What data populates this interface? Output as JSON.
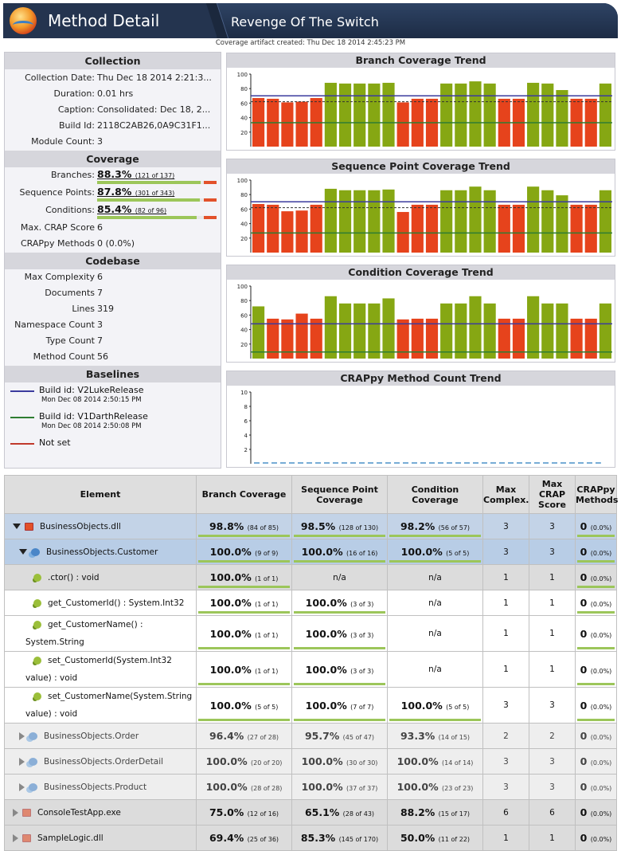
{
  "header": {
    "app_title": "Method Detail",
    "project_title": "Revenge Of The Switch",
    "artifact": "Coverage artifact created: Thu Dec 18 2014 2:45:23 PM"
  },
  "collection": {
    "title": "Collection",
    "rows": [
      {
        "k": "Collection Date:",
        "v": "Thu Dec 18 2014 2:21:3..."
      },
      {
        "k": "Duration:",
        "v": "0.01 hrs"
      },
      {
        "k": "Caption:",
        "v": "Consolidated: Dec 18, 2..."
      },
      {
        "k": "Build Id:",
        "v": "2118C2AB26,0A9C31F1..."
      },
      {
        "k": "Module Count:",
        "v": "3"
      }
    ]
  },
  "coverage": {
    "title": "Coverage",
    "rows": [
      {
        "k": "Branches:",
        "pct": "88.3%",
        "ct": "(121 of 137)",
        "frac": 0.883
      },
      {
        "k": "Sequence Points:",
        "pct": "87.8%",
        "ct": "(301 of 343)",
        "frac": 0.878
      },
      {
        "k": "Conditions:",
        "pct": "85.4%",
        "ct": "(82 of 96)",
        "frac": 0.854
      }
    ],
    "extra": [
      {
        "k": "Max. CRAP Score",
        "v": "6"
      },
      {
        "k": "CRAPpy Methods",
        "v": "0 (0.0%)"
      }
    ]
  },
  "codebase": {
    "title": "Codebase",
    "rows": [
      {
        "k": "Max Complexity",
        "v": "6"
      },
      {
        "k": "Documents",
        "v": "7"
      },
      {
        "k": "Lines",
        "v": "319"
      },
      {
        "k": "Namespace Count",
        "v": "3"
      },
      {
        "k": "Type Count",
        "v": "7"
      },
      {
        "k": "Method Count",
        "v": "56"
      }
    ]
  },
  "baselines": {
    "title": "Baselines",
    "items": [
      {
        "name": "Build id: V2LukeRelease",
        "date": "Mon Dec 08 2014 2:50:15 PM",
        "color": "#3b3b9e"
      },
      {
        "name": "Build id: V1DarthRelease",
        "date": "Mon Dec 08 2014 2:50:08 PM",
        "color": "#2e7d32"
      },
      {
        "name": "Not set",
        "date": "",
        "color": "#c0392b"
      }
    ]
  },
  "chart_data": [
    {
      "type": "bar",
      "title": "Branch Coverage Trend",
      "ylim": [
        0,
        100
      ],
      "yticks": [
        20,
        40,
        60,
        80,
        100
      ],
      "lines": {
        "blue": 70,
        "green": 33,
        "dashed": 62
      },
      "values": [
        67,
        66,
        61,
        62,
        67,
        88,
        87,
        87,
        87,
        88,
        61,
        66,
        66,
        87,
        87,
        90,
        87,
        66,
        66,
        88,
        87,
        78,
        66,
        66,
        87
      ]
    },
    {
      "type": "bar",
      "title": "Sequence Point Coverage Trend",
      "ylim": [
        0,
        100
      ],
      "yticks": [
        20,
        40,
        60,
        80,
        100
      ],
      "lines": {
        "blue": 70,
        "green": 27,
        "dashed": 62
      },
      "values": [
        67,
        66,
        57,
        58,
        66,
        88,
        86,
        86,
        86,
        87,
        56,
        66,
        66,
        86,
        86,
        91,
        86,
        66,
        66,
        91,
        86,
        79,
        66,
        66,
        86
      ]
    },
    {
      "type": "bar",
      "title": "Condition Coverage Trend",
      "ylim": [
        0,
        100
      ],
      "yticks": [
        20,
        40,
        60,
        80,
        100
      ],
      "lines": {
        "blue": 48,
        "green": 9,
        "dashed": null
      },
      "values": [
        72,
        55,
        54,
        62,
        55,
        86,
        76,
        76,
        76,
        83,
        54,
        55,
        55,
        76,
        76,
        86,
        76,
        55,
        55,
        86,
        76,
        76,
        55,
        55,
        76
      ]
    },
    {
      "type": "line",
      "title": "CRAPpy Method Count Trend",
      "ylim": [
        0,
        10
      ],
      "yticks": [
        2,
        4,
        6,
        8,
        10
      ],
      "values": [
        0,
        0,
        0,
        0,
        0,
        0,
        0,
        0,
        0,
        0,
        0,
        0,
        0,
        0,
        0,
        0,
        0,
        0,
        0,
        0,
        0,
        0,
        0,
        0,
        0
      ]
    }
  ],
  "grid": {
    "headers": [
      "Element",
      "Branch Coverage",
      "Sequence Point Coverage",
      "Condition Coverage",
      "Max Complex.",
      "Max CRAP Score",
      "CRAPpy Methods"
    ],
    "rows": [
      {
        "cls": "lvl0",
        "indent": 0,
        "tri": "dn",
        "icon": "asm",
        "name": "BusinessObjects.dll",
        "b": [
          "98.8%",
          "(84 of 85)"
        ],
        "s": [
          "98.5%",
          "(128 of 130)"
        ],
        "c": [
          "98.2%",
          "(56 of 57)"
        ],
        "mc": "3",
        "crap": "3",
        "crappy": [
          "0",
          "(0.0%)"
        ]
      },
      {
        "cls": "lvl1",
        "indent": 1,
        "tri": "dn",
        "icon": "cls",
        "name": "BusinessObjects.Customer",
        "b": [
          "100.0%",
          "(9 of 9)"
        ],
        "s": [
          "100.0%",
          "(16 of 16)"
        ],
        "c": [
          "100.0%",
          "(5 of 5)"
        ],
        "mc": "3",
        "crap": "3",
        "crappy": [
          "0",
          "(0.0%)"
        ]
      },
      {
        "cls": "sel",
        "indent": 2,
        "icon": "mth",
        "name": ".ctor() : void",
        "b": [
          "100.0%",
          "(1 of 1)"
        ],
        "s": [
          "n/a",
          ""
        ],
        "c": [
          "n/a",
          ""
        ],
        "mc": "1",
        "crap": "1",
        "crappy": [
          "0",
          "(0.0%)"
        ]
      },
      {
        "cls": "",
        "indent": 2,
        "icon": "mth",
        "name": "get_CustomerId() : System.Int32",
        "b": [
          "100.0%",
          "(1 of 1)"
        ],
        "s": [
          "100.0%",
          "(3 of 3)"
        ],
        "c": [
          "n/a",
          ""
        ],
        "mc": "1",
        "crap": "1",
        "crappy": [
          "0",
          "(0.0%)"
        ]
      },
      {
        "cls": "",
        "indent": 2,
        "icon": "mth",
        "name": "get_CustomerName() : System.String",
        "wrap": true,
        "b": [
          "100.0%",
          "(1 of 1)"
        ],
        "s": [
          "100.0%",
          "(3 of 3)"
        ],
        "c": [
          "n/a",
          ""
        ],
        "mc": "1",
        "crap": "1",
        "crappy": [
          "0",
          "(0.0%)"
        ]
      },
      {
        "cls": "",
        "indent": 2,
        "icon": "mth",
        "name": "set_CustomerId(System.Int32 value) : void",
        "wrap": true,
        "b": [
          "100.0%",
          "(1 of 1)"
        ],
        "s": [
          "100.0%",
          "(3 of 3)"
        ],
        "c": [
          "n/a",
          ""
        ],
        "mc": "1",
        "crap": "1",
        "crappy": [
          "0",
          "(0.0%)"
        ]
      },
      {
        "cls": "",
        "indent": 2,
        "icon": "mth",
        "name": "set_CustomerName(System.String value) : void",
        "wrap": true,
        "b": [
          "100.0%",
          "(5 of 5)"
        ],
        "s": [
          "100.0%",
          "(7 of 7)"
        ],
        "c": [
          "100.0%",
          "(5 of 5)"
        ],
        "mc": "3",
        "crap": "3",
        "crappy": [
          "0",
          "(0.0%)"
        ]
      },
      {
        "cls": "dim",
        "indent": 1,
        "tri": "rt",
        "icon": "cls",
        "name": "BusinessObjects.Order",
        "b": [
          "96.4%",
          "(27 of 28)"
        ],
        "s": [
          "95.7%",
          "(45 of 47)"
        ],
        "c": [
          "93.3%",
          "(14 of 15)"
        ],
        "mc": "2",
        "crap": "2",
        "crappy": [
          "0",
          "(0.0%)"
        ]
      },
      {
        "cls": "dim",
        "indent": 1,
        "tri": "rt",
        "icon": "cls",
        "name": "BusinessObjects.OrderDetail",
        "b": [
          "100.0%",
          "(20 of 20)"
        ],
        "s": [
          "100.0%",
          "(30 of 30)"
        ],
        "c": [
          "100.0%",
          "(14 of 14)"
        ],
        "mc": "3",
        "crap": "3",
        "crappy": [
          "0",
          "(0.0%)"
        ]
      },
      {
        "cls": "dim",
        "indent": 1,
        "tri": "rt",
        "icon": "cls",
        "name": "BusinessObjects.Product",
        "b": [
          "100.0%",
          "(28 of 28)"
        ],
        "s": [
          "100.0%",
          "(37 of 37)"
        ],
        "c": [
          "100.0%",
          "(23 of 23)"
        ],
        "mc": "3",
        "crap": "3",
        "crappy": [
          "0",
          "(0.0%)"
        ]
      },
      {
        "cls": "sel",
        "indent": 0,
        "tri": "rt",
        "icon": "asm",
        "name": "ConsoleTestApp.exe",
        "b": [
          "75.0%",
          "(12 of 16)"
        ],
        "s": [
          "65.1%",
          "(28 of 43)"
        ],
        "c": [
          "88.2%",
          "(15 of 17)"
        ],
        "mc": "6",
        "crap": "6",
        "crappy": [
          "0",
          "(0.0%)"
        ]
      },
      {
        "cls": "sel",
        "indent": 0,
        "tri": "rt",
        "icon": "asm",
        "name": "SampleLogic.dll",
        "b": [
          "69.4%",
          "(25 of 36)"
        ],
        "s": [
          "85.3%",
          "(145 of 170)"
        ],
        "c": [
          "50.0%",
          "(11 of 22)"
        ],
        "mc": "1",
        "crap": "1",
        "crappy": [
          "0",
          "(0.0%)"
        ]
      }
    ]
  }
}
